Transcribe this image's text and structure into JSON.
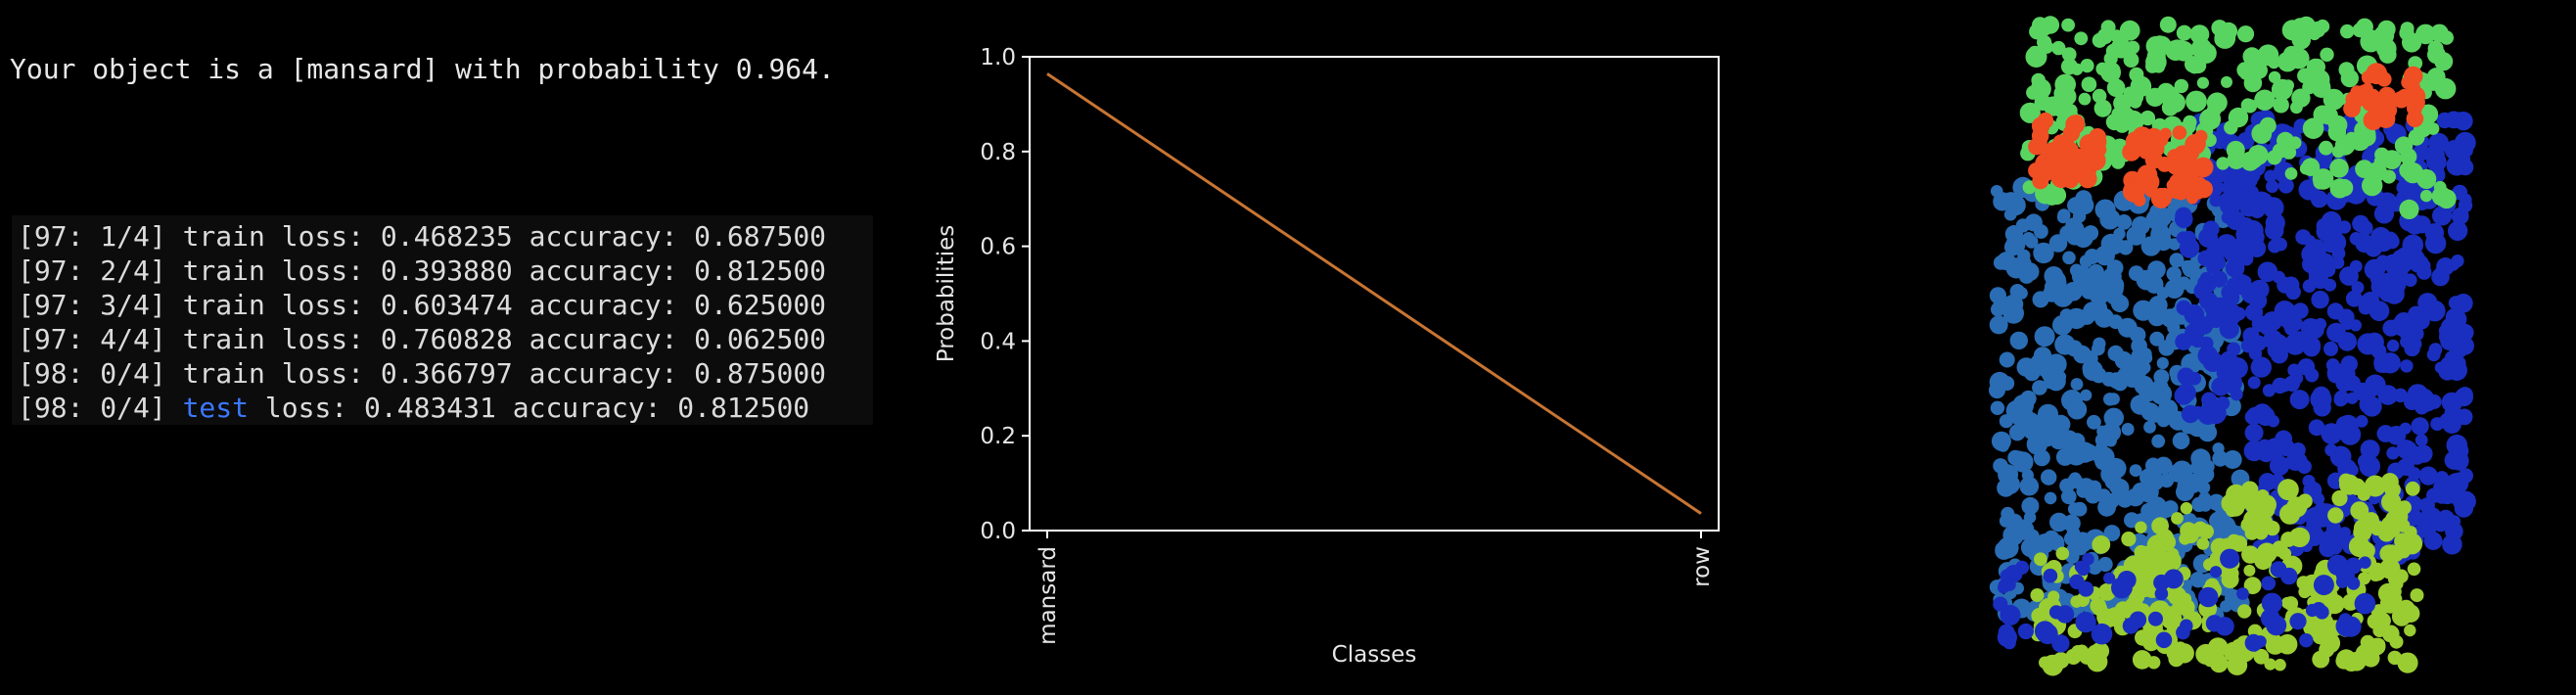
{
  "result": {
    "text": "Your object is a [mansard] with probability 0.964."
  },
  "log": {
    "lines": [
      {
        "prefix": "[97: 1/4] ",
        "kind": "train",
        "rest": " loss: 0.468235 accuracy: 0.687500"
      },
      {
        "prefix": "[97: 2/4] ",
        "kind": "train",
        "rest": " loss: 0.393880 accuracy: 0.812500"
      },
      {
        "prefix": "[97: 3/4] ",
        "kind": "train",
        "rest": " loss: 0.603474 accuracy: 0.625000"
      },
      {
        "prefix": "[97: 4/4] ",
        "kind": "train",
        "rest": " loss: 0.760828 accuracy: 0.062500"
      },
      {
        "prefix": "[98: 0/4] ",
        "kind": "train",
        "rest": " loss: 0.366797 accuracy: 0.875000"
      },
      {
        "prefix": "[98: 0/4] ",
        "kind": "test",
        "rest": " loss: 0.483431 accuracy: 0.812500"
      }
    ],
    "test_color": "#3b78ff"
  },
  "chart_data": {
    "type": "line",
    "categories": [
      "mansard",
      "row"
    ],
    "series": [
      {
        "values": [
          0.964,
          0.036
        ],
        "color": "#c87533"
      }
    ],
    "xlabel": "Classes",
    "ylabel": "Probabilities",
    "yticks": [
      "0.0",
      "0.2",
      "0.4",
      "0.6",
      "0.8",
      "1.0"
    ],
    "ylim": [
      0.0,
      1.0
    ],
    "grid": false
  },
  "pointcloud": {
    "colors": {
      "roof": "#5ad460",
      "dormer": "#f04e23",
      "facade_right": "#1a2fbf",
      "facade_left": "#2a6db5",
      "ground": "#9acd32"
    }
  }
}
